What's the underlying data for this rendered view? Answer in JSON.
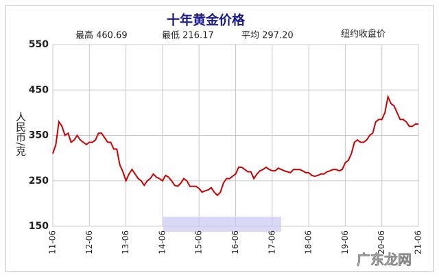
{
  "chart_data": {
    "type": "line",
    "title": "十年黄金价格",
    "annotations": [
      "最高 460.69",
      "最低 216.17",
      "平均 297.20",
      "纽约收盘价"
    ],
    "ylabel": "人民币/克",
    "watermark": "广东龙网",
    "color": "#cc0000",
    "ylim": [
      150,
      550
    ],
    "yticks": [
      150,
      250,
      350,
      450,
      550
    ],
    "grid": true,
    "categories": [
      "11-06",
      null,
      null,
      null,
      null,
      null,
      null,
      null,
      null,
      null,
      null,
      null,
      "12-06",
      null,
      null,
      null,
      null,
      null,
      null,
      null,
      null,
      null,
      null,
      null,
      "13-06",
      null,
      null,
      null,
      null,
      null,
      null,
      null,
      null,
      null,
      null,
      null,
      "14-06",
      null,
      null,
      null,
      null,
      null,
      null,
      null,
      null,
      null,
      null,
      null,
      "15-06",
      null,
      null,
      null,
      null,
      null,
      null,
      null,
      null,
      null,
      null,
      null,
      "16-06",
      null,
      null,
      null,
      null,
      null,
      null,
      null,
      null,
      null,
      null,
      null,
      "17-06",
      null,
      null,
      null,
      null,
      null,
      null,
      null,
      null,
      null,
      null,
      null,
      "18-06",
      null,
      null,
      null,
      null,
      null,
      null,
      null,
      null,
      null,
      null,
      null,
      "19-06",
      null,
      null,
      null,
      null,
      null,
      null,
      null,
      null,
      null,
      null,
      null,
      "20-06",
      null,
      null,
      null,
      null,
      null,
      null,
      null,
      null,
      null,
      null,
      null,
      "21-06"
    ],
    "values": [
      310,
      330,
      380,
      370,
      350,
      355,
      335,
      340,
      350,
      340,
      335,
      330,
      335,
      335,
      340,
      355,
      355,
      345,
      335,
      335,
      320,
      320,
      285,
      270,
      250,
      265,
      275,
      265,
      255,
      250,
      240,
      250,
      255,
      265,
      258,
      255,
      250,
      262,
      258,
      250,
      240,
      238,
      245,
      255,
      250,
      238,
      238,
      238,
      233,
      225,
      228,
      230,
      235,
      225,
      218,
      225,
      245,
      255,
      255,
      260,
      265,
      280,
      280,
      275,
      270,
      270,
      255,
      265,
      272,
      275,
      280,
      275,
      272,
      272,
      278,
      275,
      272,
      270,
      268,
      275,
      275,
      275,
      272,
      268,
      268,
      262,
      260,
      262,
      265,
      265,
      270,
      272,
      275,
      275,
      272,
      275,
      290,
      295,
      310,
      335,
      340,
      335,
      335,
      340,
      350,
      355,
      380,
      385,
      385,
      400,
      435,
      420,
      415,
      400,
      385,
      385,
      380,
      370,
      370,
      375,
      375
    ]
  }
}
